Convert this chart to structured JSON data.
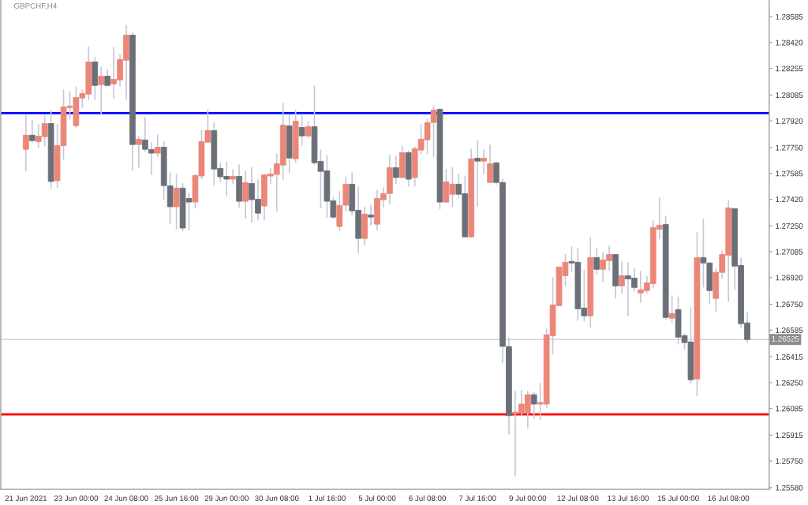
{
  "chart_data": {
    "type": "candlestick",
    "title": "GBPCHF,H4",
    "categories": [
      "21 Jun 2021",
      null,
      null,
      null,
      null,
      null,
      null,
      null,
      "23 Jun 00:00",
      null,
      null,
      null,
      null,
      null,
      null,
      null,
      "24 Jun 08:00",
      null,
      null,
      null,
      null,
      null,
      null,
      null,
      "25 Jun 16:00",
      null,
      null,
      null,
      null,
      null,
      null,
      null,
      "29 Jun 00:00",
      null,
      null,
      null,
      null,
      null,
      null,
      null,
      "30 Jun 08:00",
      null,
      null,
      null,
      null,
      null,
      null,
      null,
      "1 Jul 16:00",
      null,
      null,
      null,
      null,
      null,
      null,
      null,
      "5 Jul 00:00",
      null,
      null,
      null,
      null,
      null,
      null,
      null,
      "6 Jul 08:00",
      null,
      null,
      null,
      null,
      null,
      null,
      null,
      "7 Jul 16:00",
      null,
      null,
      null,
      null,
      null,
      null,
      null,
      "9 Jul 00:00",
      null,
      null,
      null,
      null,
      null,
      null,
      null,
      "12 Jul 08:00",
      null,
      null,
      null,
      null,
      null,
      null,
      null,
      "13 Jul 16:00",
      null,
      null,
      null,
      null,
      null,
      null,
      null,
      "15 Jul 00:00",
      null,
      null,
      null,
      null,
      null,
      null,
      null,
      "16 Jul 08:00",
      null,
      null,
      null
    ],
    "ohlc": [
      [
        1.27739,
        1.27959,
        1.27598,
        1.27829
      ],
      [
        1.27829,
        1.27925,
        1.27783,
        1.27794
      ],
      [
        1.27788,
        1.279,
        1.27747,
        1.27823
      ],
      [
        1.27819,
        1.27954,
        1.27757,
        1.27903
      ],
      [
        1.27903,
        1.2799,
        1.27487,
        1.27533
      ],
      [
        1.27538,
        1.279,
        1.27492,
        1.27762
      ],
      [
        1.27762,
        1.2812,
        1.27673,
        1.28009
      ],
      [
        1.28005,
        1.28109,
        1.27928,
        1.28015
      ],
      [
        1.2789,
        1.2814,
        1.27875,
        1.28069
      ],
      [
        1.28066,
        1.2812,
        1.28,
        1.28094
      ],
      [
        1.28091,
        1.28396,
        1.28051,
        1.28296
      ],
      [
        1.28296,
        1.28326,
        1.28051,
        1.28146
      ],
      [
        1.28151,
        1.28265,
        1.2796,
        1.28205
      ],
      [
        1.28205,
        1.2825,
        1.28141,
        1.28146
      ],
      [
        1.28156,
        1.28391,
        1.28061,
        1.28185
      ],
      [
        1.28181,
        1.28346,
        1.28141,
        1.28311
      ],
      [
        1.28307,
        1.28532,
        1.28056,
        1.28467
      ],
      [
        1.28467,
        1.28483,
        1.27603,
        1.27769
      ],
      [
        1.27769,
        1.27823,
        1.27623,
        1.27803
      ],
      [
        1.27798,
        1.27943,
        1.27724,
        1.27739
      ],
      [
        1.27737,
        1.27783,
        1.27573,
        1.27714
      ],
      [
        1.27714,
        1.27833,
        1.2769,
        1.27752
      ],
      [
        1.27752,
        1.27793,
        1.27417,
        1.27507
      ],
      [
        1.27506,
        1.27591,
        1.27261,
        1.27372
      ],
      [
        1.27372,
        1.27581,
        1.27229,
        1.27491
      ],
      [
        1.27491,
        1.27522,
        1.27216,
        1.27236
      ],
      [
        1.27425,
        1.27461,
        1.27221,
        1.27402
      ],
      [
        1.27402,
        1.27581,
        1.27361,
        1.27571
      ],
      [
        1.27568,
        1.27863,
        1.27548,
        1.27788
      ],
      [
        1.27784,
        1.27994,
        1.27781,
        1.27858
      ],
      [
        1.27858,
        1.27913,
        1.27507,
        1.27613
      ],
      [
        1.27617,
        1.27652,
        1.27527,
        1.27563
      ],
      [
        1.27566,
        1.27662,
        1.27437,
        1.27548
      ],
      [
        1.27548,
        1.27611,
        1.27517,
        1.27566
      ],
      [
        1.27566,
        1.27642,
        1.27367,
        1.27407
      ],
      [
        1.27407,
        1.27601,
        1.27296,
        1.27526
      ],
      [
        1.27521,
        1.27627,
        1.27271,
        1.27417
      ],
      [
        1.2742,
        1.27546,
        1.27285,
        1.27331
      ],
      [
        1.27377,
        1.27581,
        1.27286,
        1.27576
      ],
      [
        1.27568,
        1.27617,
        1.27517,
        1.27581
      ],
      [
        1.27578,
        1.27712,
        1.27341,
        1.27647
      ],
      [
        1.27638,
        1.28034,
        1.27543,
        1.27893
      ],
      [
        1.27888,
        1.27964,
        1.27588,
        1.27683
      ],
      [
        1.27678,
        1.27989,
        1.27653,
        1.27918
      ],
      [
        1.27878,
        1.27964,
        1.27764,
        1.27824
      ],
      [
        1.27824,
        1.27918,
        1.27809,
        1.27883
      ],
      [
        1.27883,
        1.28145,
        1.27638,
        1.27653
      ],
      [
        1.27662,
        1.27737,
        1.27361,
        1.27598
      ],
      [
        1.27601,
        1.27702,
        1.27301,
        1.27407
      ],
      [
        1.2741,
        1.27435,
        1.27296,
        1.27306
      ],
      [
        1.27246,
        1.27471,
        1.27216,
        1.2738
      ],
      [
        1.27382,
        1.27561,
        1.27341,
        1.27516
      ],
      [
        1.27516,
        1.27591,
        1.27316,
        1.27346
      ],
      [
        1.2735,
        1.27501,
        1.27075,
        1.2717
      ],
      [
        1.2717,
        1.27375,
        1.27125,
        1.27325
      ],
      [
        1.2732,
        1.27385,
        1.27251,
        1.27306
      ],
      [
        1.27261,
        1.27481,
        1.27221,
        1.27425
      ],
      [
        1.27417,
        1.27496,
        1.27367,
        1.27456
      ],
      [
        1.27457,
        1.27702,
        1.27387,
        1.27622
      ],
      [
        1.27622,
        1.27697,
        1.27517,
        1.27558
      ],
      [
        1.27558,
        1.27762,
        1.27553,
        1.27717
      ],
      [
        1.27717,
        1.27732,
        1.27502,
        1.27548
      ],
      [
        1.27558,
        1.27757,
        1.27502,
        1.27742
      ],
      [
        1.27734,
        1.27898,
        1.27707,
        1.27803
      ],
      [
        1.27799,
        1.27933,
        1.27709,
        1.27908
      ],
      [
        1.2791,
        1.28019,
        1.27688,
        1.27989
      ],
      [
        1.27994,
        1.27999,
        1.27356,
        1.27402
      ],
      [
        1.27402,
        1.27611,
        1.27397,
        1.27531
      ],
      [
        1.27452,
        1.27627,
        1.27372,
        1.27516
      ],
      [
        1.27516,
        1.27586,
        1.27427,
        1.27452
      ],
      [
        1.27456,
        1.27571,
        1.27175,
        1.2718
      ],
      [
        1.2718,
        1.27742,
        1.27175,
        1.27677
      ],
      [
        1.27682,
        1.27798,
        1.27372,
        1.27663
      ],
      [
        1.27663,
        1.27737,
        1.27578,
        1.27682
      ],
      [
        1.27527,
        1.27767,
        1.27527,
        1.27647
      ],
      [
        1.27652,
        1.27662,
        1.27512,
        1.27527
      ],
      [
        1.27527,
        1.27551,
        1.26374,
        1.26481
      ],
      [
        1.2648,
        1.26537,
        1.25918,
        1.26039
      ],
      [
        1.26051,
        1.26198,
        1.25651,
        1.26062
      ],
      [
        1.26057,
        1.26203,
        1.26039,
        1.26113
      ],
      [
        1.26057,
        1.26198,
        1.25958,
        1.26173
      ],
      [
        1.26173,
        1.26188,
        1.26018,
        1.26113
      ],
      [
        1.26113,
        1.26248,
        1.26013,
        1.26123
      ],
      [
        1.26113,
        1.26595,
        1.26087,
        1.26555
      ],
      [
        1.2655,
        1.26922,
        1.26431,
        1.26746
      ],
      [
        1.26741,
        1.26988,
        1.26736,
        1.26988
      ],
      [
        1.26932,
        1.27073,
        1.26867,
        1.27018
      ],
      [
        1.27023,
        1.27119,
        1.26953,
        1.27013
      ],
      [
        1.27018,
        1.27109,
        1.26646,
        1.26721
      ],
      [
        1.26726,
        1.26968,
        1.26641,
        1.26676
      ],
      [
        1.26676,
        1.27179,
        1.266,
        1.27048
      ],
      [
        1.27048,
        1.27109,
        1.26942,
        1.26973
      ],
      [
        1.26973,
        1.27083,
        1.26892,
        1.27033
      ],
      [
        1.27028,
        1.27124,
        1.26963,
        1.27068
      ],
      [
        1.27068,
        1.27068,
        1.26787,
        1.26867
      ],
      [
        1.26867,
        1.27023,
        1.26817,
        1.26932
      ],
      [
        1.26932,
        1.27018,
        1.26672,
        1.26912
      ],
      [
        1.26917,
        1.26983,
        1.26832,
        1.26857
      ],
      [
        1.26822,
        1.26963,
        1.26761,
        1.26842
      ],
      [
        1.26837,
        1.26932,
        1.26817,
        1.26887
      ],
      [
        1.26882,
        1.27285,
        1.26852,
        1.27239
      ],
      [
        1.27229,
        1.2743,
        1.27164,
        1.27254
      ],
      [
        1.27259,
        1.27315,
        1.26651,
        1.26666
      ],
      [
        1.26661,
        1.26807,
        1.26631,
        1.26691
      ],
      [
        1.26716,
        1.26797,
        1.26495,
        1.2654
      ],
      [
        1.2655,
        1.26565,
        1.2646,
        1.26505
      ],
      [
        1.2651,
        1.26731,
        1.26243,
        1.26268
      ],
      [
        1.26273,
        1.27209,
        1.26163,
        1.27048
      ],
      [
        1.27048,
        1.27295,
        1.26857,
        1.27013
      ],
      [
        1.27013,
        1.27018,
        1.26751,
        1.26837
      ],
      [
        1.26787,
        1.26978,
        1.26701,
        1.26953
      ],
      [
        1.26953,
        1.27093,
        1.26912,
        1.27068
      ],
      [
        1.27063,
        1.27415,
        1.26766,
        1.27365
      ],
      [
        1.2736,
        1.27365,
        1.26842,
        1.26993
      ],
      [
        1.26998,
        1.27048,
        1.266,
        1.26626
      ],
      [
        1.26631,
        1.26701,
        1.26505,
        1.26525
      ]
    ],
    "colors": [
      "#ec8678",
      "#6b7078",
      "#ec8678",
      "#ec8678",
      "#6b7078",
      "#ec8678",
      "#ec8678",
      "#ec8678",
      "#ec8678",
      "#ec8678",
      "#ec8678",
      "#6b7078",
      "#ec8678",
      "#6b7078",
      "#ec8678",
      "#ec8678",
      "#ec8678",
      "#6b7078",
      "#ec8678",
      "#6b7078",
      "#6b7078",
      "#ec8678",
      "#6b7078",
      "#6b7078",
      "#ec8678",
      "#6b7078",
      "#6b7078",
      "#ec8678",
      "#ec8678",
      "#ec8678",
      "#6b7078",
      "#6b7078",
      "#6b7078",
      "#ec8678",
      "#6b7078",
      "#ec8678",
      "#6b7078",
      "#6b7078",
      "#ec8678",
      "#ec8678",
      "#ec8678",
      "#ec8678",
      "#6b7078",
      "#ec8678",
      "#6b7078",
      "#ec8678",
      "#6b7078",
      "#6b7078",
      "#6b7078",
      "#6b7078",
      "#ec8678",
      "#ec8678",
      "#6b7078",
      "#6b7078",
      "#ec8678",
      "#6b7078",
      "#ec8678",
      "#ec8678",
      "#ec8678",
      "#6b7078",
      "#ec8678",
      "#6b7078",
      "#ec8678",
      "#ec8678",
      "#ec8678",
      "#ec8678",
      "#6b7078",
      "#ec8678",
      "#ec8678",
      "#6b7078",
      "#6b7078",
      "#ec8678",
      "#6b7078",
      "#ec8678",
      "#ec8678",
      "#6b7078",
      "#6b7078",
      "#6b7078",
      "#ec8678",
      "#ec8678",
      "#ec8678",
      "#6b7078",
      "#ec8678",
      "#ec8678",
      "#ec8678",
      "#ec8678",
      "#ec8678",
      "#6b7078",
      "#6b7078",
      "#6b7078",
      "#ec8678",
      "#6b7078",
      "#ec8678",
      "#ec8678",
      "#6b7078",
      "#ec8678",
      "#6b7078",
      "#6b7078",
      "#ec8678",
      "#ec8678",
      "#ec8678",
      "#ec8678",
      "#6b7078",
      "#ec8678",
      "#6b7078",
      "#6b7078",
      "#6b7078",
      "#ec8678",
      "#6b7078",
      "#6b7078",
      "#ec8678",
      "#ec8678",
      "#ec8678",
      "#6b7078",
      "#6b7078",
      "#6b7078"
    ],
    "ylim": [
      1.25569,
      1.28688
    ],
    "yticks": [
      1.28585,
      {
        "value": 1.2842,
        "label": "1.28420"
      },
      1.28255,
      1.28085,
      {
        "value": 1.2792,
        "label": "1.27920"
      },
      {
        "value": 1.2775,
        "label": "1.27750"
      },
      1.27585,
      {
        "value": 1.2742,
        "label": "1.27420"
      },
      {
        "value": 1.2725,
        "label": "1.27250"
      },
      1.27085,
      {
        "value": 1.2692,
        "label": "1.26920"
      },
      {
        "value": 1.2675,
        "label": "1.26750"
      },
      1.26585,
      1.26415,
      {
        "value": 1.2625,
        "label": "1.26250"
      },
      1.26085,
      1.25915,
      {
        "value": 1.2575,
        "label": "1.25750"
      },
      {
        "value": 1.2558,
        "label": "1.25580"
      }
    ],
    "ref_lines": [
      {
        "axis": "y",
        "value": 1.27969,
        "color": "#0000ff"
      },
      {
        "axis": "y",
        "value": 1.26047,
        "color": "#ff0000"
      },
      {
        "axis": "y",
        "value": 1.26525,
        "label": "1.26525",
        "color": "#d5d6dc"
      }
    ]
  }
}
